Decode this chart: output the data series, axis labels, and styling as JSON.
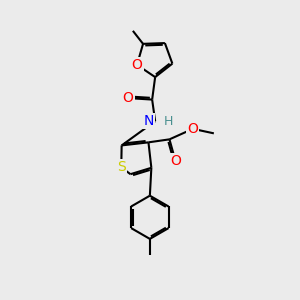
{
  "background_color": "#ebebeb",
  "atom_colors": {
    "O": "#ff0000",
    "N": "#0000ff",
    "S": "#cccc00",
    "H": "#4a9090",
    "C": "#000000"
  },
  "bond_color": "#000000",
  "bond_width": 1.5,
  "font_size_atoms": 10
}
